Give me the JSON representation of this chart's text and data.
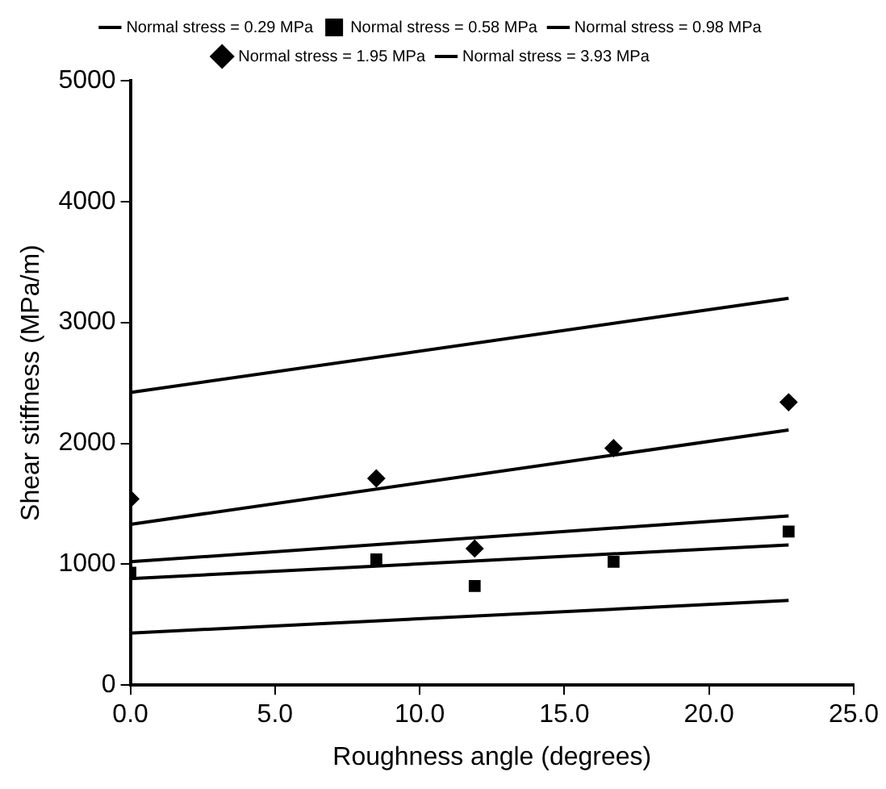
{
  "chart_data": {
    "type": "scatter",
    "xlabel": "Roughness angle (degrees)",
    "ylabel": "Shear stiffness (MPa/m)",
    "xlim": [
      0,
      25
    ],
    "xticks": [
      {
        "value": 0,
        "label": "0.0"
      },
      {
        "value": 5,
        "label": "5.0"
      },
      {
        "value": 10,
        "label": "10.0"
      },
      {
        "value": 15,
        "label": "15.0"
      },
      {
        "value": 20,
        "label": "20.0"
      },
      {
        "value": 25,
        "label": "25.0"
      }
    ],
    "ylim": [
      0,
      5000
    ],
    "yticks": [
      0,
      1000,
      2000,
      3000,
      4000,
      5000
    ],
    "grid": false,
    "legend": "top",
    "series": [
      {
        "name": "Normal stress = 0.29 MPa",
        "type": "line",
        "marker": "none",
        "color": "#000000",
        "x": [
          0,
          22.75
        ],
        "values": [
          430,
          700
        ]
      },
      {
        "name": "Normal stress = 0.58 MPa",
        "type": "scatter",
        "marker": "square",
        "color": "#000000",
        "x": [
          0,
          8.5,
          11.9,
          16.7,
          22.75
        ],
        "values": [
          930,
          1040,
          820,
          1020,
          1270
        ]
      },
      {
        "name": "Normal stress = 0.98 MPa",
        "type": "line",
        "marker": "none",
        "color": "#000000",
        "x": [
          0,
          22.75
        ],
        "values": [
          1020,
          1400
        ]
      },
      {
        "name": "Normal stress = 1.95 MPa",
        "type": "scatter",
        "marker": "diamond",
        "color": "#000000",
        "x": [
          0,
          8.5,
          11.9,
          16.7,
          22.75
        ],
        "values": [
          1540,
          1710,
          1130,
          1960,
          2340
        ]
      },
      {
        "name": "Normal stress = 3.93 MPa",
        "type": "line",
        "marker": "none",
        "color": "#000000",
        "x": [
          0,
          22.75
        ],
        "values": [
          2420,
          3200
        ]
      },
      {
        "type": "line",
        "marker": "none",
        "color": "#000000",
        "x": [
          0,
          22.75
        ],
        "values": [
          880,
          1160
        ]
      },
      {
        "type": "line",
        "marker": "none",
        "color": "#000000",
        "x": [
          0,
          22.75
        ],
        "values": [
          1330,
          2110
        ]
      }
    ]
  }
}
